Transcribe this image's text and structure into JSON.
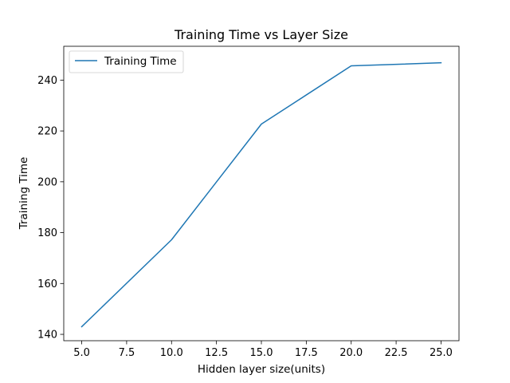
{
  "chart_data": {
    "type": "line",
    "title": "Training Time vs Layer Size",
    "xlabel": "Hidden layer size(units)",
    "ylabel": "Training Time",
    "xlim": [
      4.0,
      26.0
    ],
    "ylim": [
      137.5,
      253.3
    ],
    "x_ticks": [
      5.0,
      7.5,
      10.0,
      12.5,
      15.0,
      17.5,
      20.0,
      22.5,
      25.0
    ],
    "x_tick_labels": [
      "5.0",
      "7.5",
      "10.0",
      "12.5",
      "15.0",
      "17.5",
      "20.0",
      "22.5",
      "25.0"
    ],
    "y_ticks": [
      140,
      160,
      180,
      200,
      220,
      240
    ],
    "y_tick_labels": [
      "140",
      "160",
      "180",
      "200",
      "220",
      "240"
    ],
    "grid": false,
    "legend_position": "upper left",
    "series": [
      {
        "name": "Training Time",
        "color": "#1f77b4",
        "x": [
          5,
          10,
          15,
          20,
          25
        ],
        "y": [
          143.0,
          177.2,
          222.7,
          245.6,
          246.8
        ]
      }
    ]
  }
}
